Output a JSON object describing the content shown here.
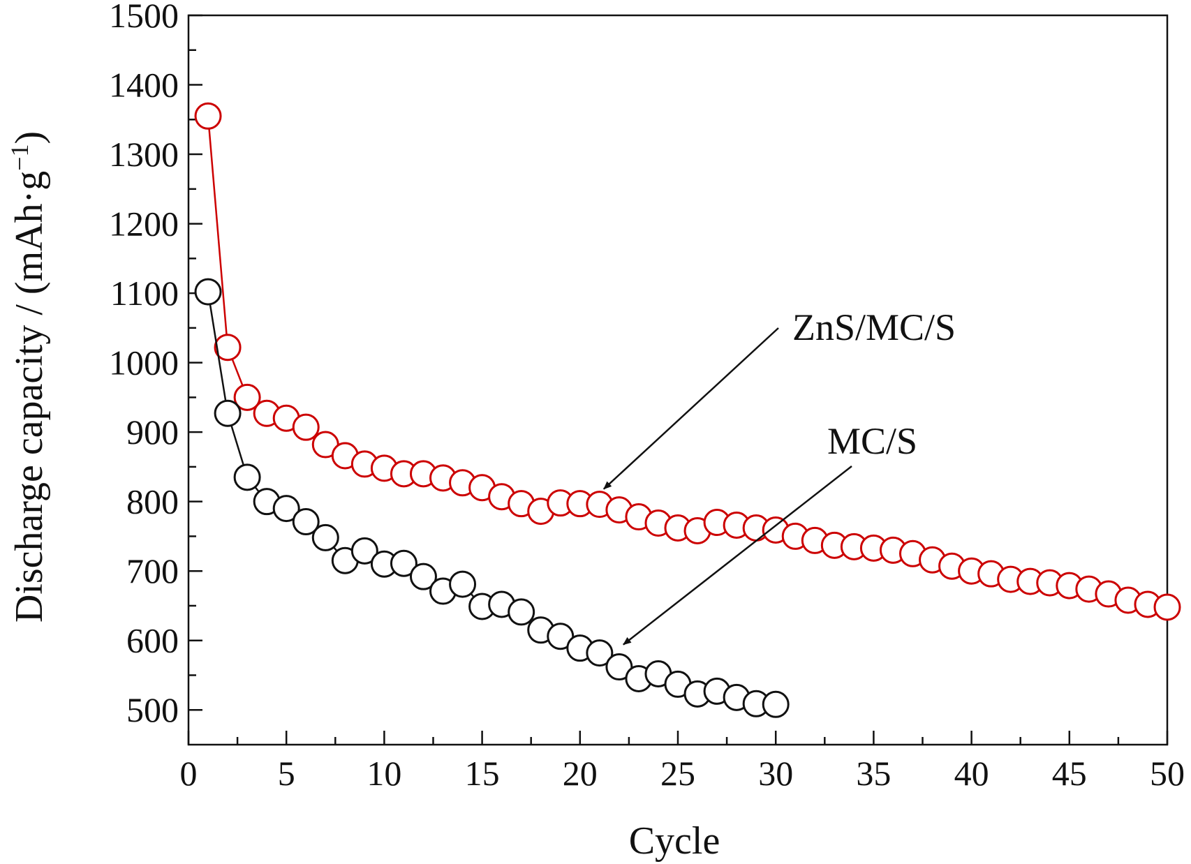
{
  "chart_data": {
    "type": "line",
    "title": "",
    "xlabel": "Cycle",
    "ylabel": "Discharge capacity / (mAh·g",
    "ylabel_sup": "−1",
    "ylabel_close": ")",
    "xlim": [
      0,
      50
    ],
    "ylim": [
      450,
      1500
    ],
    "xticks": [
      0,
      5,
      10,
      15,
      20,
      25,
      30,
      35,
      40,
      45,
      50
    ],
    "yticks": [
      500,
      600,
      700,
      800,
      900,
      1000,
      1100,
      1200,
      1300,
      1400,
      1500
    ],
    "xtick_labels": [
      "0",
      "5",
      "10",
      "15",
      "20",
      "25",
      "30",
      "35",
      "40",
      "45",
      "50"
    ],
    "ytick_labels": [
      "500",
      "600",
      "700",
      "800",
      "900",
      "1000",
      "1100",
      "1200",
      "1300",
      "1400",
      "1500"
    ],
    "grid": false,
    "legend": "none",
    "series": [
      {
        "name": "ZnS/MC/S",
        "color": "#cc0000",
        "marker": "open-circle",
        "x": [
          1,
          2,
          3,
          4,
          5,
          6,
          7,
          8,
          9,
          10,
          11,
          12,
          13,
          14,
          15,
          16,
          17,
          18,
          19,
          20,
          21,
          22,
          23,
          24,
          25,
          26,
          27,
          28,
          29,
          30,
          31,
          32,
          33,
          34,
          35,
          36,
          37,
          38,
          39,
          40,
          41,
          42,
          43,
          44,
          45,
          46,
          47,
          48,
          49,
          50
        ],
        "values": [
          1355,
          1022,
          950,
          927,
          920,
          907,
          882,
          866,
          854,
          848,
          840,
          840,
          834,
          827,
          820,
          807,
          797,
          786,
          798,
          797,
          796,
          788,
          778,
          769,
          762,
          758,
          770,
          766,
          762,
          759,
          750,
          744,
          737,
          735,
          733,
          730,
          725,
          716,
          707,
          700,
          696,
          688,
          685,
          683,
          679,
          674,
          667,
          658,
          652,
          648
        ]
      },
      {
        "name": "MC/S",
        "color": "#111111",
        "marker": "open-circle",
        "x": [
          1,
          2,
          3,
          4,
          5,
          6,
          7,
          8,
          9,
          10,
          11,
          12,
          13,
          14,
          15,
          16,
          17,
          18,
          19,
          20,
          21,
          22,
          23,
          24,
          25,
          26,
          27,
          28,
          29,
          30
        ],
        "values": [
          1102,
          927,
          835,
          800,
          790,
          771,
          748,
          715,
          729,
          710,
          711,
          692,
          671,
          681,
          649,
          652,
          641,
          615,
          606,
          589,
          582,
          562,
          545,
          552,
          537,
          523,
          527,
          518,
          509,
          508
        ]
      }
    ],
    "annotations": [
      {
        "text": "ZnS/MC/S",
        "target_series": "ZnS/MC/S",
        "target_x": 21,
        "target_y": 796
      },
      {
        "text": "MC/S",
        "target_series": "MC/S",
        "target_x": 22,
        "target_y": 572
      }
    ]
  }
}
